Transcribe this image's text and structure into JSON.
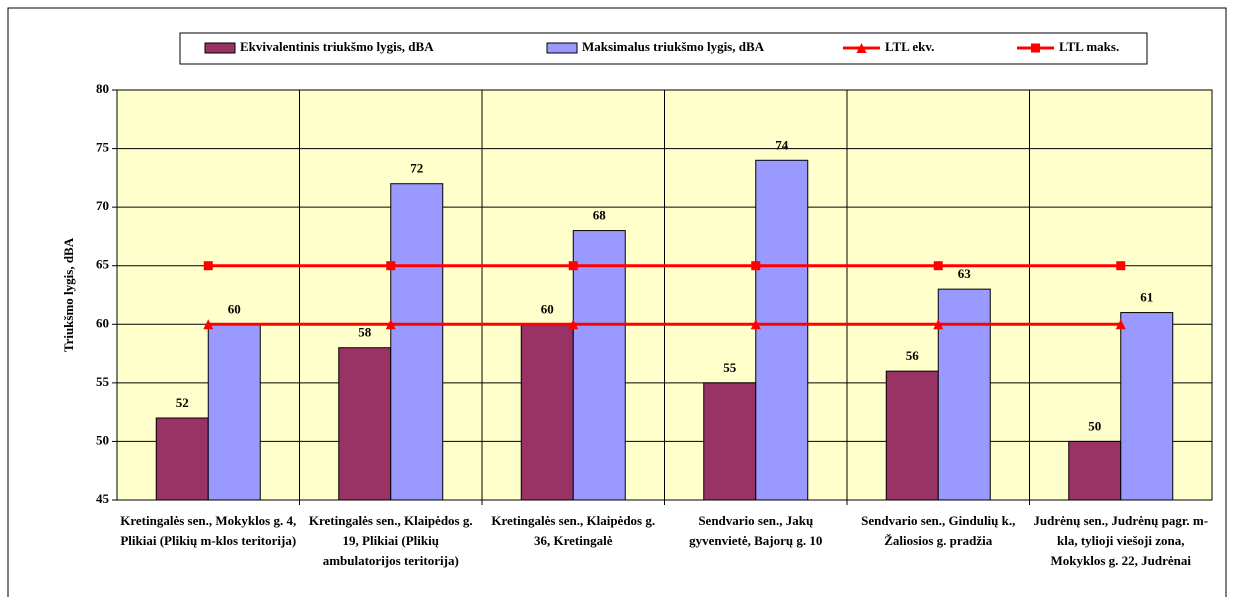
{
  "chart_data": {
    "type": "bar",
    "y_label": "Triukšmo lygis, dBA",
    "categories": [
      "Kretingalės sen., Mokyklos g. 4, Plikiai (Plikių m-klos teritorija)",
      "Kretingalės sen., Klaipėdos g. 19, Plikiai (Plikių ambulatorijos teritorija)",
      "Kretingalės sen., Klaipėdos g. 36, Kretingalė",
      "Sendvario sen., Jakų gyvenvietė, Bajorų g. 10",
      "Sendvario sen., Gindulių k., Žaliosios g. pradžia",
      "Judrėnų sen., Judrėnų pagr. m-kla, tylioji viešoji zona, Mokyklos g. 22, Judrėnai"
    ],
    "series": [
      {
        "name": "Ekvivalentinis triukšmo lygis, dBA",
        "type": "bar",
        "color": "#993366",
        "values": [
          52,
          58,
          60,
          55,
          56,
          50
        ]
      },
      {
        "name": "Maksimalus triukšmo lygis, dBA",
        "type": "bar",
        "color": "#9999ff",
        "values": [
          60,
          72,
          68,
          74,
          63,
          61
        ]
      },
      {
        "name": "LTL ekv.",
        "type": "line",
        "marker": "triangle",
        "color": "#ff0000",
        "values": [
          60,
          60,
          60,
          60,
          60,
          60
        ]
      },
      {
        "name": "LTL maks.",
        "type": "line",
        "marker": "square",
        "color": "#ff0000",
        "values": [
          65,
          65,
          65,
          65,
          65,
          65
        ]
      }
    ],
    "ylim": [
      45,
      80
    ],
    "yticks": [
      45,
      50,
      55,
      60,
      65,
      70,
      75,
      80
    ],
    "grid": true,
    "legend": "top"
  }
}
